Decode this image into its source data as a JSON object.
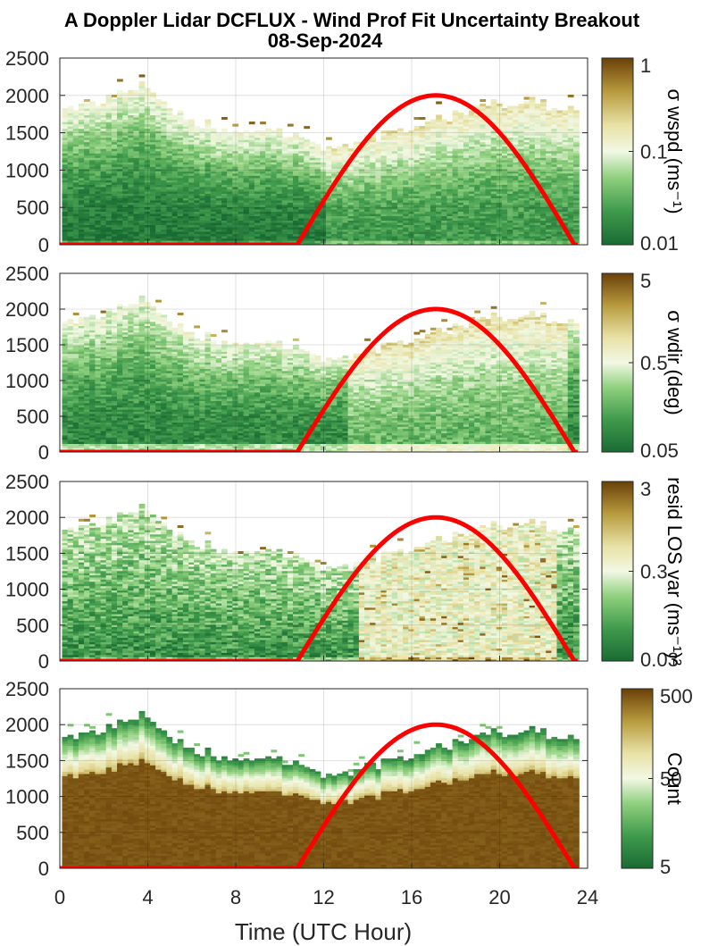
{
  "title": {
    "line1": "A Doppler Lidar DCFLUX - Wind Prof Fit Uncertainty Breakout",
    "line2": "08-Sep-2024"
  },
  "colors": {
    "sun_curve": "#ff0000",
    "axis": "#262626",
    "colormap": [
      "#1a6b33",
      "#3f9a4c",
      "#8fd07e",
      "#f2f8e4",
      "#e8e2a6",
      "#b79b3e",
      "#6a4008"
    ]
  },
  "chart_data": {
    "type": "heatmap",
    "xlabel": "Time (UTC Hour)",
    "xlim": [
      0,
      24
    ],
    "x_ticks": [
      "0",
      "4",
      "8",
      "12",
      "16",
      "20",
      "24"
    ],
    "ylim": [
      0,
      2500
    ],
    "y_ticks": [
      "0",
      "500",
      "1000",
      "1500",
      "2000",
      "2500"
    ],
    "grid": true,
    "sun_curve": {
      "start_hour": 10.8,
      "peak_hour": 17.1,
      "end_hour": 23.4,
      "peak_value": 2000
    },
    "profile_top": {
      "hours": [
        0,
        1,
        2,
        3,
        3.8,
        4.5,
        5.5,
        7,
        9,
        10.5,
        12,
        13.5,
        15,
        17,
        19,
        21,
        23,
        24
      ],
      "heights": [
        1750,
        1850,
        1950,
        2050,
        2150,
        1950,
        1700,
        1550,
        1500,
        1450,
        1300,
        1350,
        1500,
        1650,
        1850,
        1900,
        1800,
        1700
      ]
    },
    "panels": [
      {
        "name": "wspd",
        "colorbar_label": "σ wspd (ms⁻¹)",
        "colorbar_ticks": [
          "1",
          "0.1",
          "0.01"
        ]
      },
      {
        "name": "wdir",
        "colorbar_label": "σ wdir (deg)",
        "colorbar_ticks": [
          "5",
          "0.5",
          "0.05"
        ]
      },
      {
        "name": "resid",
        "colorbar_label": "resid LOS var (ms⁻¹)²",
        "colorbar_ticks": [
          "3",
          "0.3",
          "0.03"
        ]
      },
      {
        "name": "count",
        "colorbar_label": "Count",
        "colorbar_ticks": [
          "500",
          "50",
          "5"
        ]
      }
    ]
  }
}
